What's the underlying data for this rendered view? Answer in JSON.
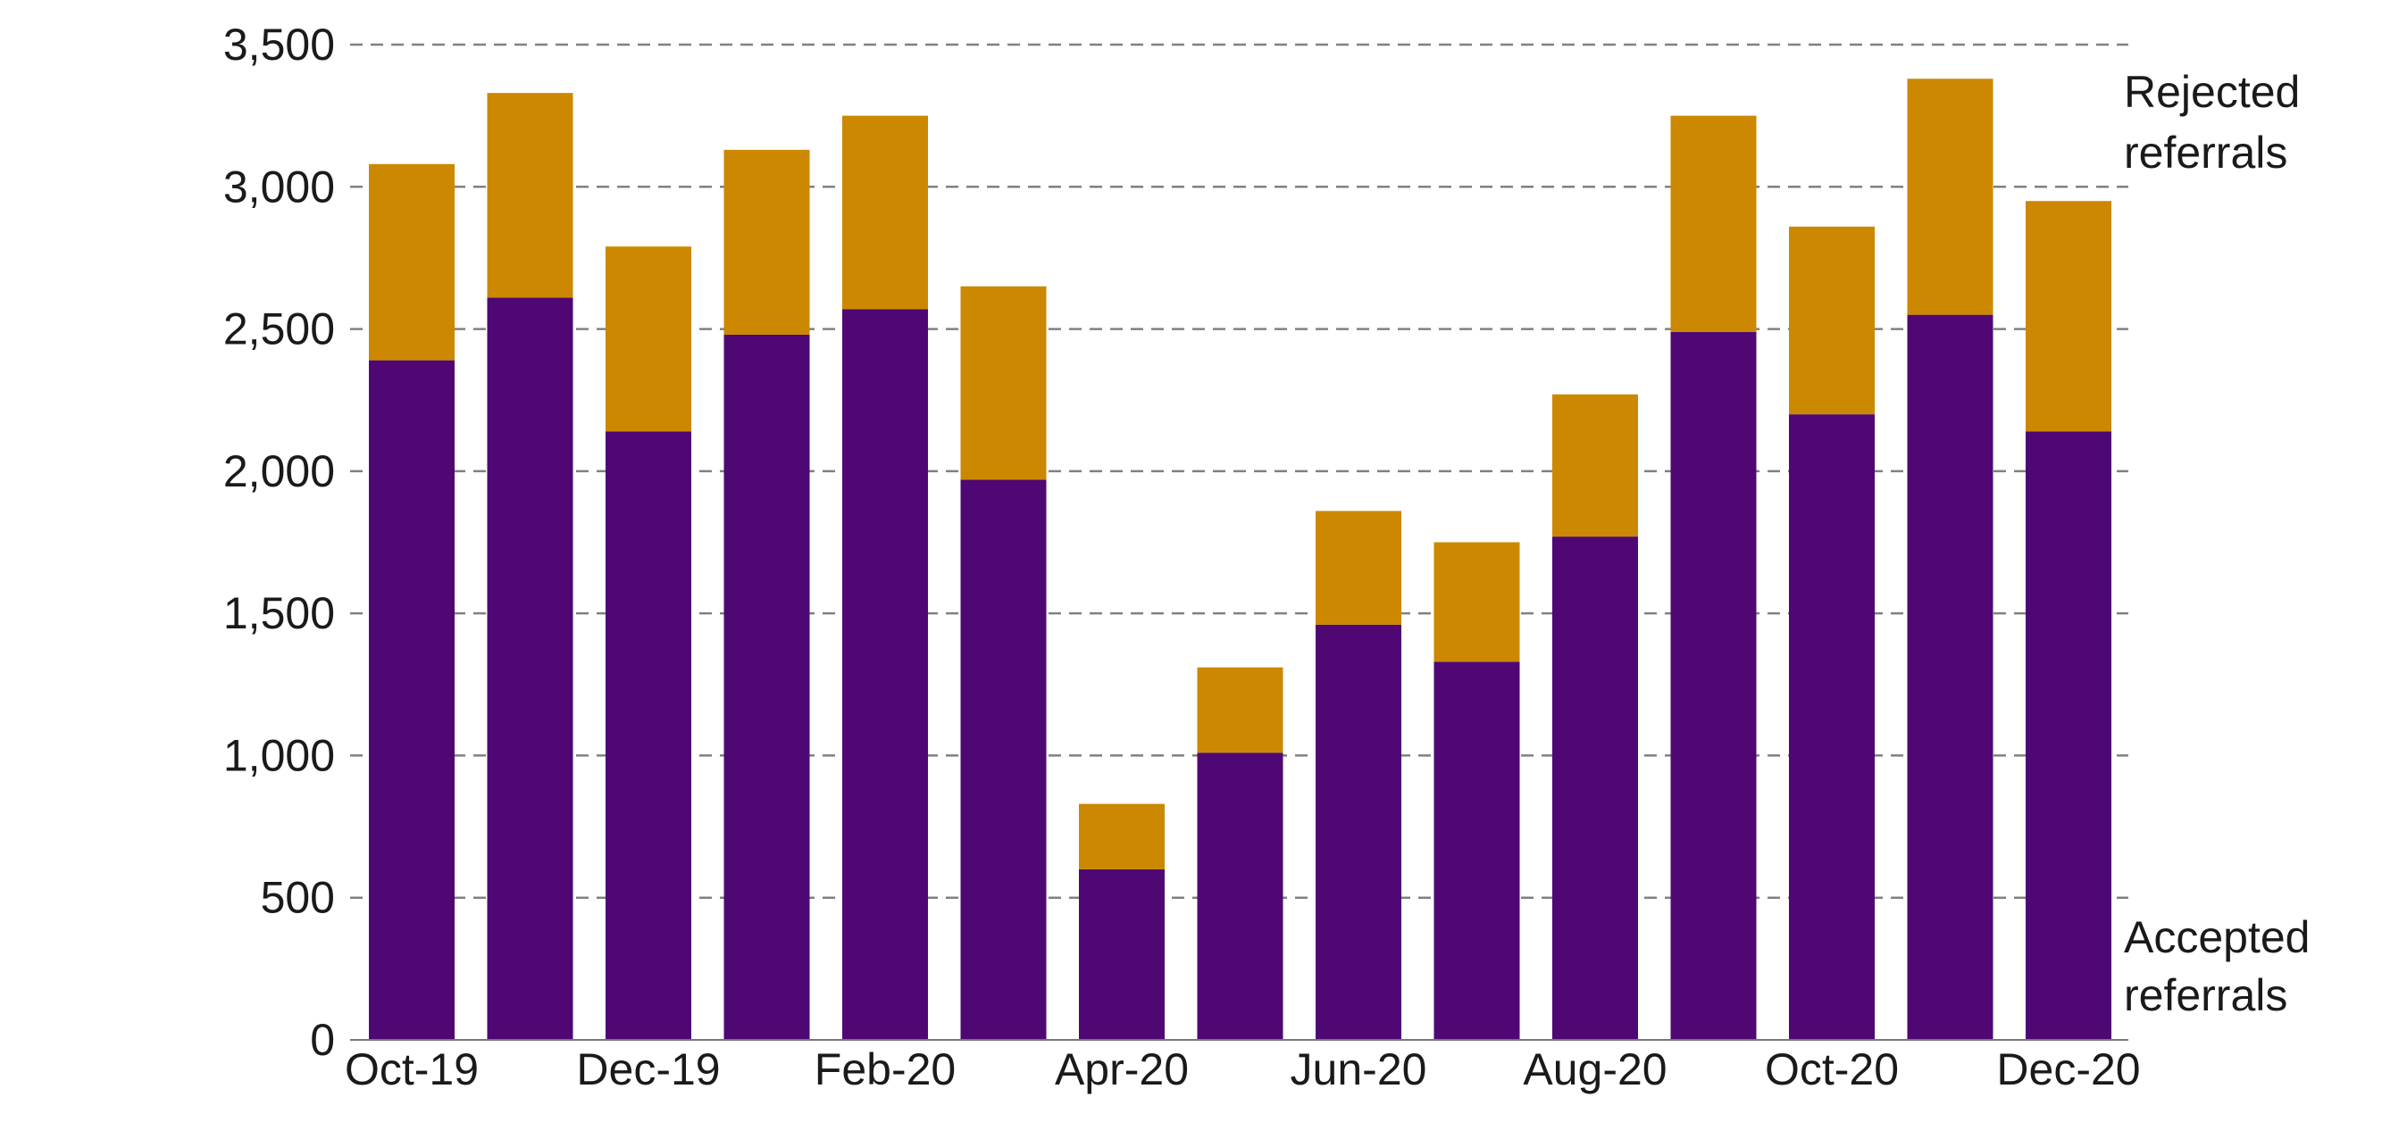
{
  "chart_data": {
    "type": "bar",
    "stacked": true,
    "title": "",
    "xlabel": "",
    "ylabel": "",
    "ylim": [
      0,
      3500
    ],
    "yticks": [
      0,
      500,
      1000,
      1500,
      2000,
      2500,
      3000,
      3500
    ],
    "ytick_labels": [
      "0",
      "500",
      "1,000",
      "1,500",
      "2,000",
      "2,500",
      "3,000",
      "3,500"
    ],
    "grid": "horizontal dashed",
    "legend": "right, labels beside series",
    "categories": [
      "Oct-19",
      "Nov-19",
      "Dec-19",
      "Jan-20",
      "Feb-20",
      "Mar-20",
      "Apr-20",
      "May-20",
      "Jun-20",
      "Jul-20",
      "Aug-20",
      "Sep-20",
      "Oct-20",
      "Nov-20",
      "Dec-20"
    ],
    "xtick_labels": [
      "Oct-19",
      "",
      "Dec-19",
      "",
      "Feb-20",
      "",
      "Apr-20",
      "",
      "Jun-20",
      "",
      "Aug-20",
      "",
      "Oct-20",
      "",
      "Dec-20"
    ],
    "series": [
      {
        "name": "Accepted referrals",
        "color": "#4f0873",
        "values": [
          2390,
          2610,
          2140,
          2480,
          2570,
          1970,
          600,
          1010,
          1460,
          1330,
          1770,
          2490,
          2200,
          2550,
          2140
        ]
      },
      {
        "name": "Rejected referrals",
        "color": "#cc8800",
        "values": [
          690,
          720,
          650,
          650,
          680,
          680,
          230,
          300,
          400,
          420,
          500,
          760,
          660,
          830,
          810
        ]
      }
    ],
    "legend_labels": {
      "rejected": [
        "Rejected",
        "referrals"
      ],
      "accepted": [
        "Accepted",
        "referrals"
      ]
    }
  }
}
